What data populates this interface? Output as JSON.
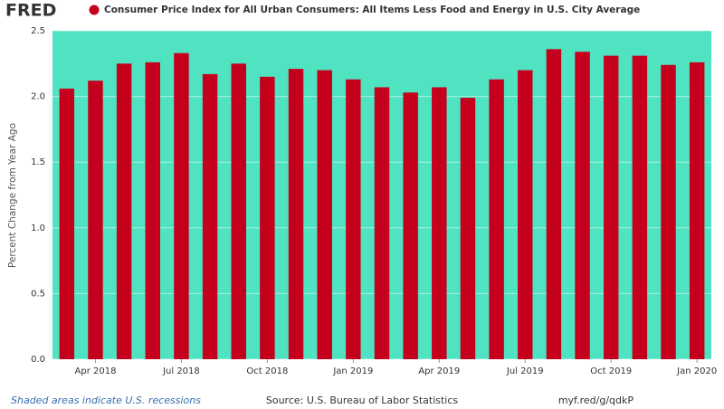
{
  "brand": "FRED",
  "chart_data": {
    "type": "bar",
    "title": "Consumer Price Index for All Urban Consumers: All Items Less Food and Energy in U.S. City Average",
    "y_axis_label": "Percent Change from Year Ago",
    "categories": [
      null,
      "Apr 2018",
      null,
      null,
      "Jul 2018",
      null,
      null,
      "Oct 2018",
      null,
      null,
      "Jan 2019",
      null,
      null,
      "Apr 2019",
      null,
      null,
      "Jul 2019",
      null,
      null,
      "Oct 2019",
      null,
      null,
      "Jan 2020"
    ],
    "values": [
      2.06,
      2.12,
      2.25,
      2.26,
      2.33,
      2.17,
      2.25,
      2.15,
      2.21,
      2.2,
      2.13,
      2.07,
      2.03,
      2.07,
      1.99,
      2.13,
      2.2,
      2.36,
      2.34,
      2.31,
      2.31,
      2.24,
      2.26
    ],
    "color": "#c4001c",
    "background": "#50e3c2",
    "ylim": [
      0,
      2.5
    ],
    "yticks": [
      {
        "value": 0,
        "label": "0.0"
      },
      0.5,
      {
        "value": 1,
        "label": "1.0"
      },
      1.5,
      {
        "value": 2,
        "label": "2.0"
      },
      2.5
    ],
    "grid": true
  },
  "footer": {
    "note": "Shaded areas indicate U.S. recessions",
    "source": "Source: U.S. Bureau of Labor Statistics",
    "link": "myf.red/g/qdkP"
  }
}
